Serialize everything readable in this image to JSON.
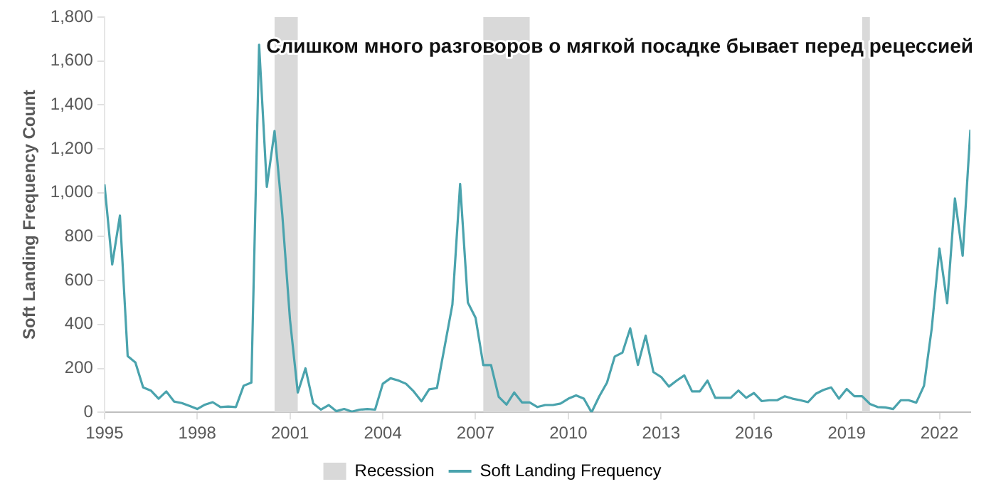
{
  "chart_data": {
    "type": "line",
    "title": "Слишком много разговоров о мягкой посадке бывает перед рецессией",
    "ylabel": "Soft Landing Frequency Count",
    "x": [
      1995,
      1995.25,
      1995.5,
      1995.75,
      1996,
      1996.25,
      1996.5,
      1996.75,
      1997,
      1997.25,
      1997.5,
      1997.75,
      1998,
      1998.25,
      1998.5,
      1998.75,
      1999,
      1999.25,
      1999.5,
      1999.75,
      2000,
      2000.25,
      2000.5,
      2000.75,
      2001,
      2001.25,
      2001.5,
      2001.75,
      2002,
      2002.25,
      2002.5,
      2002.75,
      2003,
      2003.25,
      2003.5,
      2003.75,
      2004,
      2004.25,
      2004.5,
      2004.75,
      2005,
      2005.25,
      2005.5,
      2005.75,
      2006,
      2006.25,
      2006.5,
      2006.75,
      2007,
      2007.25,
      2007.5,
      2007.75,
      2008,
      2008.25,
      2008.5,
      2008.75,
      2009,
      2009.25,
      2009.5,
      2009.75,
      2010,
      2010.25,
      2010.5,
      2010.75,
      2011,
      2011.25,
      2011.5,
      2011.75,
      2012,
      2012.25,
      2012.5,
      2012.75,
      2013,
      2013.25,
      2013.5,
      2013.75,
      2014,
      2014.25,
      2014.5,
      2014.75,
      2015,
      2015.25,
      2015.5,
      2015.75,
      2016,
      2016.25,
      2016.5,
      2016.75,
      2017,
      2017.25,
      2017.5,
      2017.75,
      2018,
      2018.25,
      2018.5,
      2018.75,
      2019,
      2019.25,
      2019.5,
      2019.75,
      2020,
      2020.25,
      2020.5,
      2020.75,
      2021,
      2021.25,
      2021.5,
      2021.75,
      2022,
      2022.25,
      2022.5,
      2022.75,
      2023
    ],
    "series": [
      {
        "name": "Soft Landing Frequency",
        "color": "#4aa3ad",
        "values": [
          1038,
          673,
          896,
          256,
          227,
          113,
          99,
          62,
          95,
          49,
          42,
          29,
          15,
          35,
          46,
          24,
          26,
          24,
          121,
          135,
          1674,
          1027,
          1281,
          900,
          420,
          90,
          200,
          40,
          12,
          33,
          5,
          15,
          3,
          12,
          15,
          12,
          130,
          155,
          145,
          130,
          95,
          50,
          105,
          110,
          300,
          490,
          1040,
          500,
          430,
          215,
          215,
          70,
          35,
          90,
          45,
          45,
          24,
          33,
          33,
          40,
          62,
          77,
          62,
          0,
          73,
          135,
          254,
          272,
          382,
          216,
          349,
          183,
          161,
          117,
          144,
          168,
          95,
          95,
          144,
          66,
          66,
          66,
          99,
          66,
          88,
          51,
          55,
          55,
          73,
          62,
          55,
          46,
          84,
          102,
          113,
          62,
          106,
          73,
          73,
          38,
          24,
          22,
          15,
          55,
          55,
          44,
          121,
          382,
          746,
          497,
          974,
          713,
          1287
        ]
      }
    ],
    "bands": [
      {
        "axis": "x",
        "from": 2000.5,
        "to": 2001.25,
        "label": "Recession",
        "color": "#d9d9d9"
      },
      {
        "axis": "x",
        "from": 2007.25,
        "to": 2008.75,
        "color": "#d9d9d9"
      },
      {
        "axis": "x",
        "from": 2019.5,
        "to": 2019.75,
        "color": "#d9d9d9"
      }
    ],
    "xlim": [
      1995,
      2023
    ],
    "xticks": [
      1995,
      1998,
      2001,
      2004,
      2007,
      2010,
      2013,
      2016,
      2019,
      2022
    ],
    "ylim": [
      0,
      1800
    ],
    "yticks": [
      0,
      200,
      400,
      600,
      800,
      {
        "value": 1000,
        "label": "1,000"
      },
      {
        "value": 1200,
        "label": "1,200"
      },
      {
        "value": 1400,
        "label": "1,400"
      },
      {
        "value": 1600,
        "label": "1,600"
      },
      {
        "value": 1800,
        "label": "1,800"
      }
    ],
    "grid": false,
    "legend": "bottom",
    "marker": "none",
    "line_style": "solid"
  }
}
